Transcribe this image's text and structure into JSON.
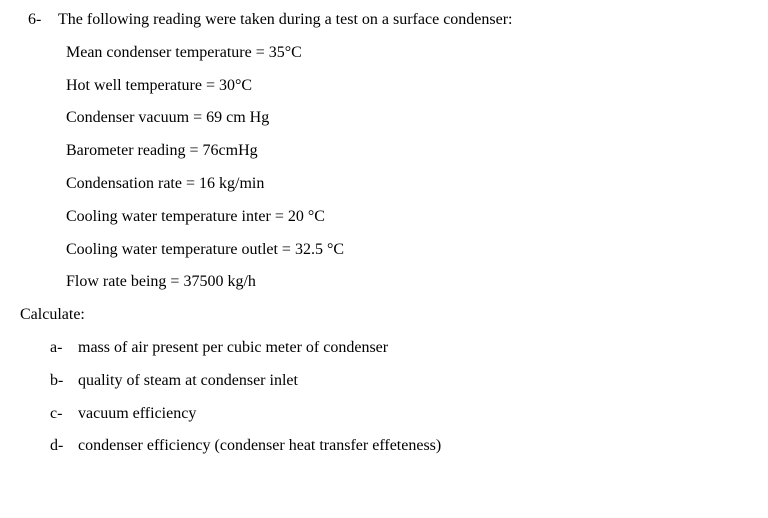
{
  "question": {
    "number": "6-",
    "intro": "The following reading were taken during a test on a surface condenser:",
    "data": [
      "Mean condenser temperature = 35°C",
      "Hot well temperature = 30°C",
      "Condenser vacuum = 69 cm Hg",
      "Barometer reading = 76cmHg",
      "Condensation rate = 16 kg/min",
      "Cooling water temperature inter = 20 °C",
      "Cooling water temperature outlet = 32.5 °C",
      "Flow rate being = 37500 kg/h"
    ],
    "calculate_label": "Calculate:",
    "subquestions": [
      {
        "letter": "a-",
        "text": "mass of air present per cubic meter of condenser"
      },
      {
        "letter": "b-",
        "text": "quality of steam at condenser inlet"
      },
      {
        "letter": "c-",
        "text": "vacuum efficiency"
      },
      {
        "letter": "d-",
        "text": "condenser efficiency (condenser heat transfer effeteness)"
      }
    ]
  }
}
